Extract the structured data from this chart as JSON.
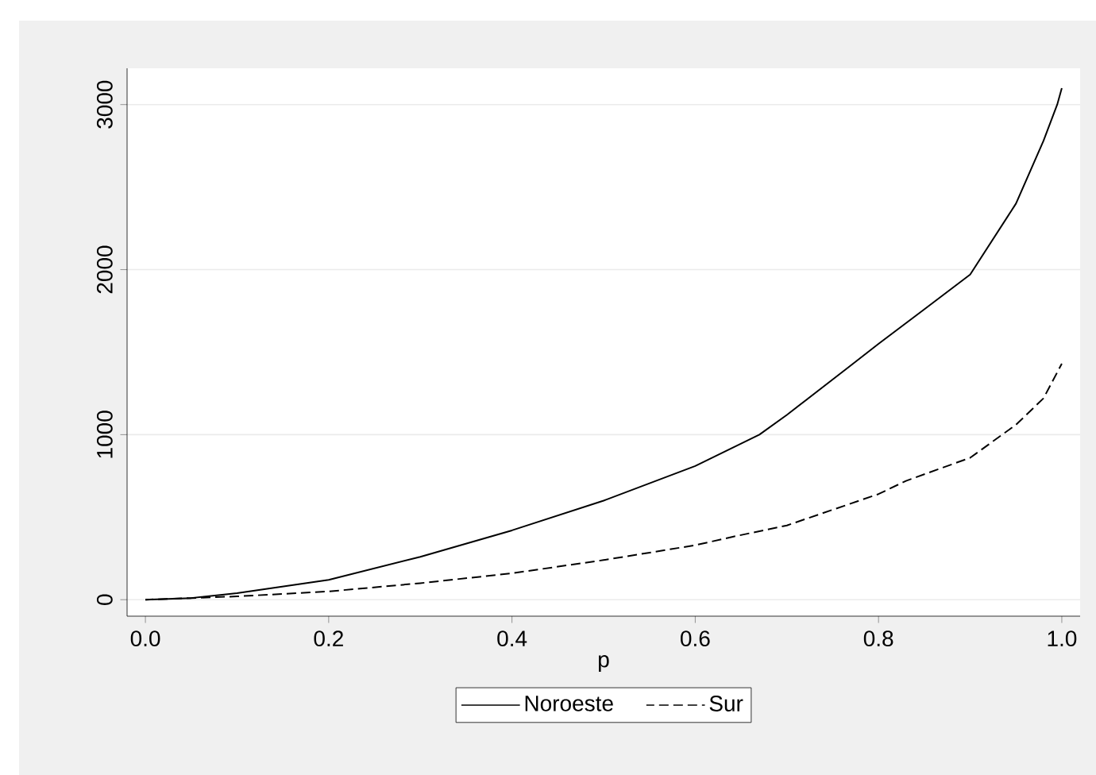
{
  "chart_data": {
    "type": "line",
    "xlabel": "p",
    "xlim": [
      -0.02,
      1.02
    ],
    "xticks": [
      {
        "value": 0,
        "label": "0.0"
      },
      {
        "value": 0.2,
        "label": "0.2"
      },
      {
        "value": 0.4,
        "label": "0.4"
      },
      {
        "value": 0.6,
        "label": "0.6"
      },
      {
        "value": 0.8,
        "label": "0.8"
      },
      {
        "value": 1,
        "label": "1.0"
      }
    ],
    "ylim": [
      -100,
      3220
    ],
    "yticks": [
      0,
      1000,
      2000,
      3000
    ],
    "grid": "y",
    "legend": "bottom",
    "marker": "none",
    "series": [
      {
        "name": "Noroeste",
        "color": "#000000",
        "line_style": "solid",
        "x": [
          0,
          0.05,
          0.1,
          0.2,
          0.3,
          0.4,
          0.5,
          0.6,
          0.67,
          0.7,
          0.77,
          0.8,
          0.85,
          0.9,
          0.95,
          0.98,
          0.995,
          1
        ],
        "values": [
          0,
          10,
          40,
          120,
          260,
          420,
          600,
          810,
          1000,
          1120,
          1420,
          1550,
          1760,
          1970,
          2400,
          2780,
          3000,
          3100
        ]
      },
      {
        "name": "Sur",
        "color": "#000000",
        "line_style": "dashed",
        "x": [
          0,
          0.05,
          0.1,
          0.2,
          0.3,
          0.4,
          0.5,
          0.6,
          0.64,
          0.7,
          0.8,
          0.83,
          0.9,
          0.95,
          0.98,
          1
        ],
        "values": [
          0,
          10,
          20,
          50,
          100,
          160,
          240,
          330,
          380,
          450,
          640,
          720,
          860,
          1060,
          1220,
          1430
        ]
      }
    ]
  }
}
